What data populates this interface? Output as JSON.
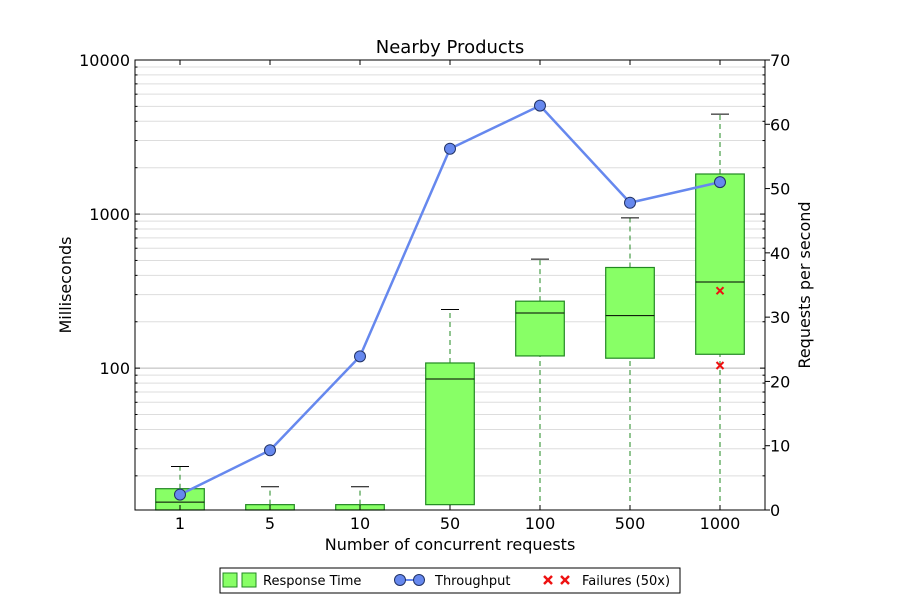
{
  "chart_data": {
    "type": "box",
    "title": "Nearby Products",
    "xlabel": "Number of concurrent requests",
    "ylabel": "Milliseconds",
    "y2label": "Requests per second",
    "categories": [
      "1",
      "5",
      "10",
      "50",
      "100",
      "500",
      "1000"
    ],
    "yscale": "log",
    "ylim": [
      12,
      10000
    ],
    "yticks": [
      {
        "value": 100,
        "label": "100"
      },
      {
        "value": 1000,
        "label": "1000"
      },
      {
        "value": 10000,
        "label": "10000"
      }
    ],
    "y2lim": [
      0,
      70
    ],
    "y2ticks": [
      0,
      10,
      20,
      30,
      40,
      50,
      60,
      70
    ],
    "grid": true,
    "response_time": {
      "name": "Response Time",
      "color": "#88ff66",
      "edge_color": "#228822",
      "boxes": [
        {
          "category": "1",
          "whisker_low": 12,
          "q1": 12,
          "median": 13.5,
          "q3": 16.5,
          "whisker_high": 23
        },
        {
          "category": "5",
          "whisker_low": 12,
          "q1": 12,
          "median": 12,
          "q3": 13,
          "whisker_high": 17
        },
        {
          "category": "10",
          "whisker_low": 12,
          "q1": 12,
          "median": 12,
          "q3": 13,
          "whisker_high": 17
        },
        {
          "category": "50",
          "whisker_low": 12,
          "q1": 13,
          "median": 85,
          "q3": 108,
          "whisker_high": 240
        },
        {
          "category": "100",
          "whisker_low": 12,
          "q1": 120,
          "median": 228,
          "q3": 272,
          "whisker_high": 510
        },
        {
          "category": "500",
          "whisker_low": 12,
          "q1": 116,
          "median": 219,
          "q3": 450,
          "whisker_high": 945
        },
        {
          "category": "1000",
          "whisker_low": 12,
          "q1": 123,
          "median": 362,
          "q3": 1820,
          "whisker_high": 4450
        }
      ]
    },
    "throughput": {
      "name": "Throughput",
      "color": "#6688ee",
      "axis": "right",
      "values": [
        2.4,
        9.3,
        23.9,
        56.2,
        62.9,
        47.8,
        51.0
      ]
    },
    "failures": {
      "name": "Failures (50x)",
      "color": "#ee1111",
      "points": [
        {
          "category": "1000",
          "value": 318
        },
        {
          "category": "1000",
          "value": 104
        }
      ]
    },
    "legend_position": "bottom"
  }
}
